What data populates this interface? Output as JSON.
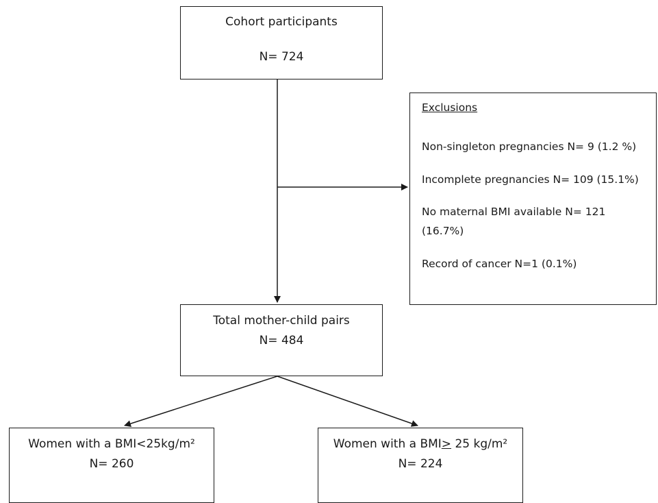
{
  "cohort": {
    "title": "Cohort participants",
    "n": "N= 724"
  },
  "exclusions": {
    "title": "Exclusions",
    "items": [
      "Non-singleton  pregnancies N= 9 (1.2 %)",
      "Incomplete  pregnancies  N= 109  (15.1%)",
      "No maternal BMI available N= 121",
      "(16.7%)",
      "Record of cancer N=1 (0.1%)"
    ]
  },
  "total": {
    "title": "Total mother-child pairs",
    "n": "N= 484"
  },
  "bmi_low": {
    "title": "Women with a BMI<25kg/m²",
    "n": "N= 260"
  },
  "bmi_high": {
    "title_prefix": "Women with a BMI",
    "title_symbol": ">",
    "title_suffix": " 25 kg/m²",
    "n": "N= 224"
  },
  "colors": {
    "line": "#1a1a1a",
    "background": "#ffffff"
  }
}
